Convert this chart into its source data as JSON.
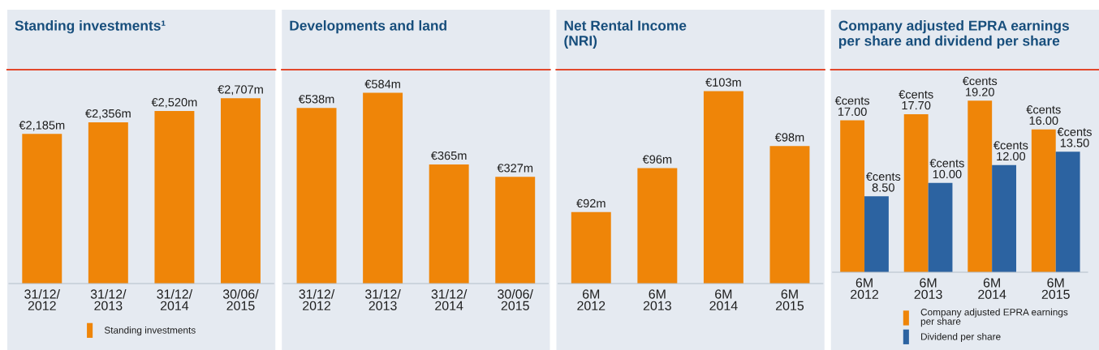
{
  "chart_data": [
    {
      "type": "bar",
      "title": "Standing investments¹",
      "categories": [
        "31/12/\n2012",
        "31/12/\n2013",
        "31/12/\n2014",
        "30/06/\n2015"
      ],
      "series": [
        {
          "name": "Standing investments",
          "color": "#ef8508",
          "values": [
            2185,
            2356,
            2520,
            2707
          ],
          "value_labels": [
            "€2,185m",
            "€2,356m",
            "€2,520m",
            "€2,707m"
          ]
        }
      ],
      "ylim": [
        0,
        3100
      ],
      "tick_labels": "x",
      "legend": "bottom"
    },
    {
      "type": "bar",
      "title": "Developments and land",
      "categories": [
        "31/12/\n2012",
        "31/12/\n2013",
        "31/12/\n2014",
        "30/06/\n2015"
      ],
      "series": [
        {
          "color": "#ef8508",
          "values": [
            538,
            584,
            365,
            327
          ],
          "value_labels": [
            "€538m",
            "€584m",
            "€365m",
            "€327m"
          ]
        }
      ],
      "ylim": [
        0,
        650
      ],
      "tick_labels": "x"
    },
    {
      "type": "bar",
      "title": "Net Rental Income\n(NRI)",
      "categories": [
        "6M\n2012",
        "6M\n2013",
        "6M\n2014",
        "6M\n2015"
      ],
      "series": [
        {
          "color": "#ef8508",
          "values": [
            92,
            96,
            103,
            98
          ],
          "value_labels": [
            "€92m",
            "€96m",
            "€103m",
            "€98m"
          ]
        }
      ],
      "ylim": [
        85.5,
        104.8
      ],
      "tick_labels": "x"
    },
    {
      "type": "bar",
      "title": "Company adjusted EPRA earnings\nper share and dividend per share",
      "categories": [
        "6M\n2012",
        "6M\n2013",
        "6M\n2014",
        "6M\n2015"
      ],
      "series": [
        {
          "name": "Company adjusted EPRA earnings\nper share",
          "color": "#ef8508",
          "values": [
            17.0,
            17.7,
            19.2,
            16.0
          ],
          "value_labels": [
            "€cents\n17.00",
            "€cents\n17.70",
            "€cents\n19.20",
            "€cents\n16.00"
          ]
        },
        {
          "name": "Dividend per share",
          "color": "#2c63a1",
          "values": [
            8.5,
            10.0,
            12.0,
            13.5
          ],
          "value_labels": [
            "€cents\n8.50",
            "€cents\n10.00",
            "€cents\n12.00",
            "€cents\n13.50"
          ]
        }
      ],
      "ylim": [
        0,
        22.5
      ],
      "tick_labels": "x",
      "legend": "bottom"
    }
  ]
}
